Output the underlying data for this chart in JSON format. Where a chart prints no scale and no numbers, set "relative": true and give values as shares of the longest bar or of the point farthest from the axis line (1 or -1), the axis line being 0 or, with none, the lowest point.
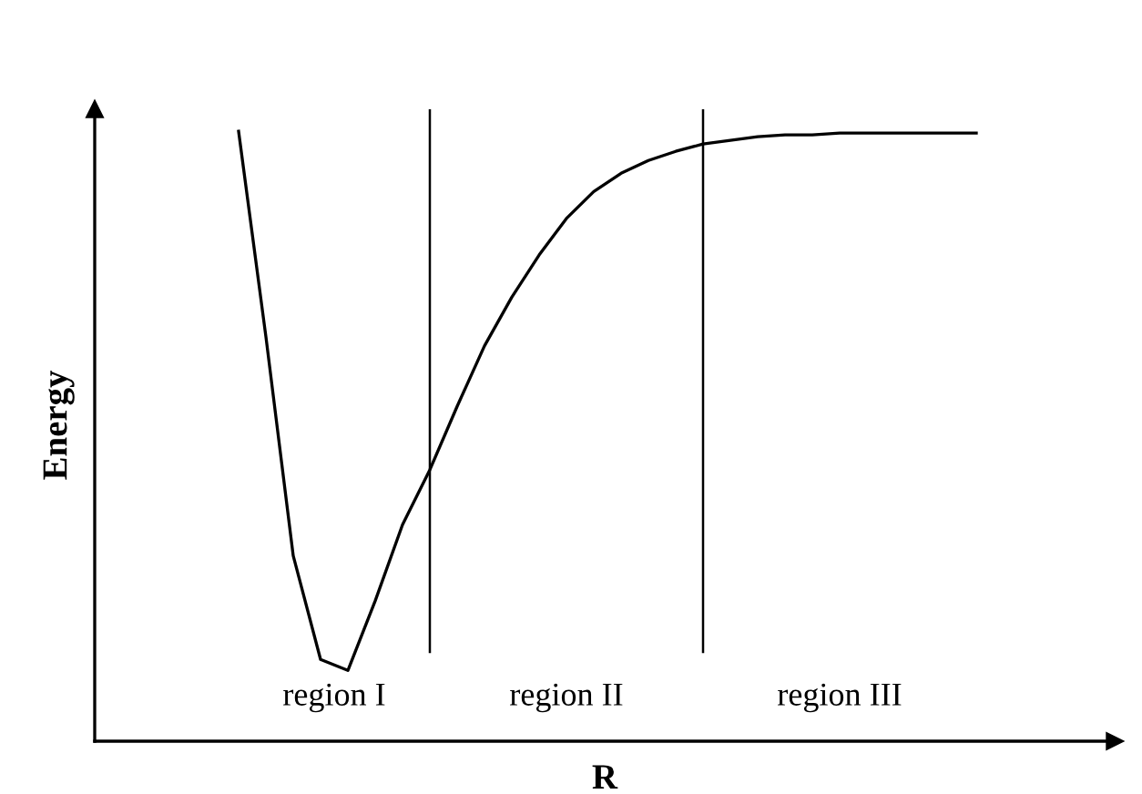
{
  "chart_data": {
    "type": "line",
    "relative": true,
    "xlabel": "R",
    "ylabel": "Energy",
    "color": "#000000",
    "categories": [
      null,
      null,
      null,
      null,
      null,
      null,
      null,
      null,
      null,
      null,
      null,
      null,
      null,
      null,
      null,
      null,
      null,
      null,
      null,
      null,
      null,
      null,
      null,
      null,
      null,
      null,
      null,
      null
    ],
    "values": [
      1.0,
      0.663,
      0.304,
      0.134,
      0.116,
      0.23,
      0.355,
      0.445,
      0.549,
      0.648,
      0.728,
      0.797,
      0.857,
      0.901,
      0.931,
      0.952,
      0.967,
      0.979,
      0.985,
      0.991,
      0.994,
      0.994,
      0.997,
      0.997,
      0.997,
      0.997,
      0.997,
      0.997
    ],
    "annotations": [
      "region I",
      "region II",
      "region III"
    ]
  }
}
